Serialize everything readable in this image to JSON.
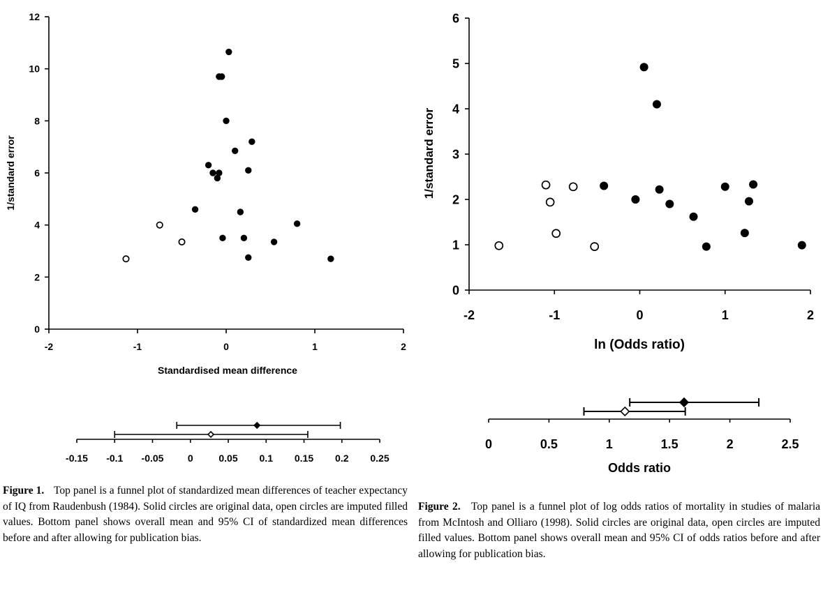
{
  "chart_data": [
    {
      "type": "scatter",
      "xlabel": "Standardised mean difference",
      "ylabel": "1/standard error",
      "xlim": [
        -2,
        2
      ],
      "ylim": [
        0,
        12
      ],
      "xticks": [
        "-2",
        "-1",
        "0",
        "1",
        "2"
      ],
      "yticks": [
        "0",
        "2",
        "4",
        "6",
        "8",
        "10",
        "12"
      ],
      "series": [
        {
          "name": "original",
          "marker": "filled",
          "x": [
            0.03,
            -0.08,
            -0.05,
            0.0,
            0.29,
            0.1,
            -0.2,
            0.25,
            -0.15,
            -0.08,
            -0.1,
            -0.35,
            0.16,
            0.8,
            -0.04,
            0.2,
            0.54,
            0.25,
            1.18
          ],
          "y": [
            10.65,
            9.7,
            9.7,
            8.0,
            7.2,
            6.85,
            6.3,
            6.1,
            6.0,
            6.0,
            5.8,
            4.6,
            4.5,
            4.05,
            3.5,
            3.5,
            3.35,
            2.75,
            2.7
          ]
        },
        {
          "name": "imputed",
          "marker": "open",
          "x": [
            -0.75,
            -0.5,
            -1.13
          ],
          "y": [
            4.0,
            3.35,
            2.7
          ]
        }
      ]
    },
    {
      "type": "interval",
      "xticks": [
        "-0.15",
        "-0.1",
        "-0.05",
        "0",
        "0.05",
        "0.1",
        "0.15",
        "0.2",
        "0.25"
      ],
      "xlim": [
        -0.15,
        0.25
      ],
      "intervals": [
        {
          "name": "before",
          "marker": "filled",
          "mean": 0.088,
          "low": -0.018,
          "high": 0.198
        },
        {
          "name": "after",
          "marker": "open",
          "mean": 0.027,
          "low": -0.1,
          "high": 0.155
        }
      ]
    },
    {
      "type": "scatter",
      "xlabel": "ln (Odds ratio)",
      "ylabel": "1/standard error",
      "xlim": [
        -2,
        2
      ],
      "ylim": [
        0,
        6
      ],
      "xticks": [
        "-2",
        "-1",
        "0",
        "1",
        "2"
      ],
      "yticks": [
        "0",
        "1",
        "2",
        "3",
        "4",
        "5",
        "6"
      ],
      "series": [
        {
          "name": "original",
          "marker": "filled",
          "x": [
            0.05,
            0.2,
            -0.42,
            0.23,
            1.0,
            1.33,
            -0.05,
            0.35,
            1.28,
            0.63,
            1.23,
            0.78,
            1.9
          ],
          "y": [
            4.92,
            4.1,
            2.3,
            2.22,
            2.28,
            2.33,
            2.0,
            1.9,
            1.96,
            1.62,
            1.26,
            0.96,
            0.99
          ]
        },
        {
          "name": "imputed",
          "marker": "open",
          "x": [
            -1.1,
            -1.05,
            -0.78,
            -0.98,
            -1.65,
            -0.53
          ],
          "y": [
            2.32,
            1.94,
            2.28,
            1.25,
            0.98,
            0.96
          ]
        }
      ]
    },
    {
      "type": "interval",
      "xlabel": "Odds ratio",
      "xticks": [
        "0",
        "0.5",
        "1",
        "1.5",
        "2",
        "2.5"
      ],
      "xlim": [
        0,
        2.5
      ],
      "intervals": [
        {
          "name": "before",
          "marker": "filled",
          "mean": 1.62,
          "low": 1.17,
          "high": 2.24
        },
        {
          "name": "after",
          "marker": "open",
          "mean": 1.13,
          "low": 0.79,
          "high": 1.63
        }
      ]
    }
  ],
  "captions": {
    "fig1": {
      "label": "Figure 1.",
      "text": "Top panel is a funnel plot of standardized mean differences of teacher expectancy of IQ from Raudenbush (1984). Solid circles are original data, open circles are imputed filled values. Bottom panel shows overall mean and 95% CI of standardized mean differences before and after allowing for publication bias."
    },
    "fig2": {
      "label": "Figure 2.",
      "text": "Top panel is a funnel plot of log odds ratios of mortality in studies of malaria from McIntosh and Olliaro (1998). Solid circles are original data, open circles are imputed filled values. Bottom panel shows overall mean and 95% CI of odds ratios before and after allowing for publication bias."
    }
  }
}
